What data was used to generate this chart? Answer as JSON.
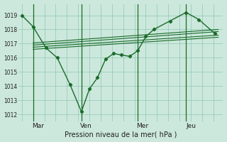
{
  "background_color": "#cce8dc",
  "grid_color": "#99ccbb",
  "line_color": "#1a6b2a",
  "title": "Pression niveau de la mer( hPa )",
  "ylabel_ticks": [
    1012,
    1013,
    1014,
    1015,
    1016,
    1017,
    1018,
    1019
  ],
  "ylim": [
    1011.5,
    1019.8
  ],
  "day_labels": [
    "Mar",
    "Ven",
    "Mer",
    "Jeu"
  ],
  "day_positions": [
    1.0,
    4.0,
    7.5,
    10.5
  ],
  "xlim": [
    -0.2,
    12.5
  ],
  "vline_x": [
    0.7,
    3.7,
    7.2,
    10.2
  ],
  "main_series_x": [
    0.0,
    0.7,
    1.5,
    2.2,
    3.0,
    3.7,
    4.2,
    4.7,
    5.2,
    5.7,
    6.2,
    6.7,
    7.2,
    7.7,
    8.2,
    9.2,
    10.2,
    11.0,
    12.0
  ],
  "main_series_y": [
    1019.0,
    1018.2,
    1016.7,
    1016.0,
    1014.1,
    1012.2,
    1013.8,
    1014.6,
    1015.9,
    1016.3,
    1016.2,
    1016.1,
    1016.5,
    1017.5,
    1018.0,
    1018.6,
    1019.2,
    1018.7,
    1017.7
  ],
  "trend1_x": [
    0.7,
    12.2
  ],
  "trend1_y": [
    1016.9,
    1017.85
  ],
  "trend2_x": [
    0.7,
    12.2
  ],
  "trend2_y": [
    1017.05,
    1018.0
  ],
  "trend3_x": [
    0.7,
    12.2
  ],
  "trend3_y": [
    1016.75,
    1017.6
  ],
  "trend4_x": [
    0.7,
    12.2
  ],
  "trend4_y": [
    1016.6,
    1017.45
  ],
  "grid_x_step": 0.7,
  "grid_x_max": 12.5,
  "figwidth": 3.2,
  "figheight": 2.0,
  "dpi": 100
}
